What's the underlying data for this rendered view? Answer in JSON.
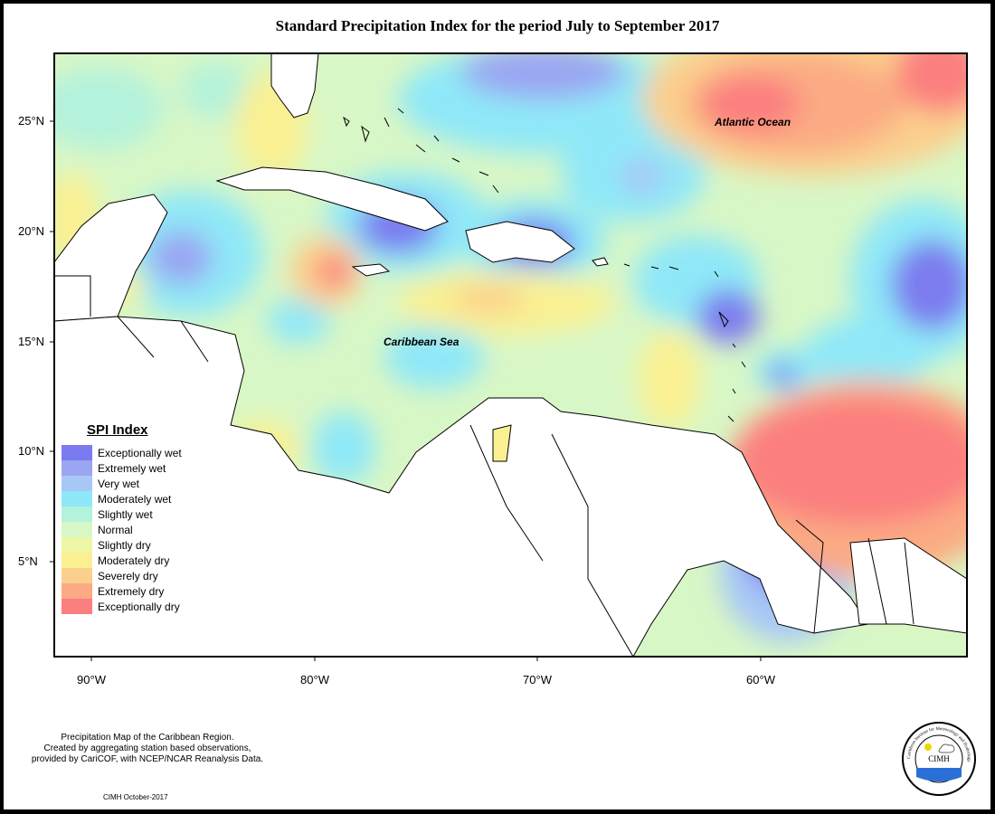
{
  "title": "Standard Precipitation Index for the period July to September 2017",
  "ocean_labels": {
    "atlantic": "Atlantic Ocean",
    "caribbean": "Caribbean Sea"
  },
  "lat_labels": [
    "25°N",
    "20°N",
    "15°N",
    "10°N",
    "5°N"
  ],
  "lon_labels": [
    "90°W",
    "80°W",
    "70°W",
    "60°W"
  ],
  "legend": {
    "title": "SPI Index",
    "items": [
      {
        "label": "Exceptionally wet",
        "color": "#7b7bef"
      },
      {
        "label": "Extremely wet",
        "color": "#9aa6f2"
      },
      {
        "label": "Very wet",
        "color": "#a7c8f7"
      },
      {
        "label": "Moderately wet",
        "color": "#8fe8f8"
      },
      {
        "label": "Slightly wet",
        "color": "#b3f2dc"
      },
      {
        "label": "Normal",
        "color": "#d8f7c6"
      },
      {
        "label": "Slightly dry",
        "color": "#eef7a6"
      },
      {
        "label": "Moderately dry",
        "color": "#faf092"
      },
      {
        "label": "Severely dry",
        "color": "#fbcf8d"
      },
      {
        "label": "Extremely dry",
        "color": "#fbaa83"
      },
      {
        "label": "Exceptionally dry",
        "color": "#fb7f7f"
      }
    ]
  },
  "footer": {
    "note_lines": [
      "Precipitation Map of the Caribbean Region.",
      "Created by aggregating station based observations,",
      "provided by CariCOF, with NCEP/NCAR Reanalysis Data."
    ],
    "date": "CIMH October-2017"
  },
  "logo": {
    "ring_text": "Caribbean Institute for Meteorology and Hydrology",
    "acronym": "CIMH"
  }
}
